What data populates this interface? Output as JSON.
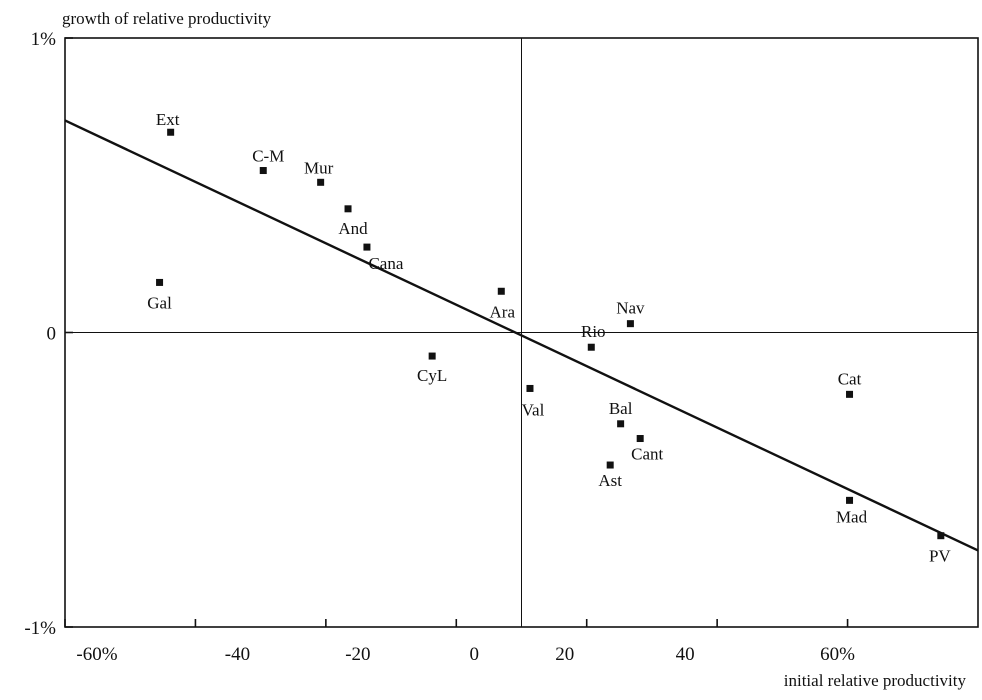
{
  "chart_data": {
    "type": "scatter",
    "title": "",
    "xlabel": "initial relative productivity",
    "ylabel": "growth of relative productivity",
    "xlim": [
      -60,
      80
    ],
    "ylim": [
      -1,
      1
    ],
    "grid": false,
    "zero_lines": {
      "x": 10,
      "y": 0
    },
    "x_ticks": [
      {
        "value": -60,
        "label": "-60%"
      },
      {
        "value": -40,
        "label": "-40"
      },
      {
        "value": -20,
        "label": "-20"
      },
      {
        "value": 0,
        "label": "0"
      },
      {
        "value": 20,
        "label": "20"
      },
      {
        "value": 40,
        "label": "40"
      },
      {
        "value": 60,
        "label": "60%"
      }
    ],
    "x_tick_marks": [
      -60,
      -40,
      -20,
      0,
      20,
      40,
      60
    ],
    "y_ticks": [
      {
        "value": 1,
        "label": "1%"
      },
      {
        "value": 0,
        "label": "0"
      },
      {
        "value": -1,
        "label": "-1%"
      }
    ],
    "points": [
      {
        "label": "Ext",
        "x": -43.8,
        "y": 0.68
      },
      {
        "label": "C-M",
        "x": -29.6,
        "y": 0.55
      },
      {
        "label": "Mur",
        "x": -20.8,
        "y": 0.51
      },
      {
        "label": "And",
        "x": -16.6,
        "y": 0.42
      },
      {
        "label": "Cana",
        "x": -13.7,
        "y": 0.29
      },
      {
        "label": "Gal",
        "x": -45.5,
        "y": 0.17
      },
      {
        "label": "Ara",
        "x": 6.9,
        "y": 0.14
      },
      {
        "label": "Nav",
        "x": 26.7,
        "y": 0.03
      },
      {
        "label": "Rio",
        "x": 20.7,
        "y": -0.05
      },
      {
        "label": "CyL",
        "x": -3.7,
        "y": -0.08
      },
      {
        "label": "Val",
        "x": 11.3,
        "y": -0.19
      },
      {
        "label": "Cat",
        "x": 60.3,
        "y": -0.21
      },
      {
        "label": "Bal",
        "x": 25.2,
        "y": -0.31
      },
      {
        "label": "Cant",
        "x": 28.2,
        "y": -0.36
      },
      {
        "label": "Ast",
        "x": 23.6,
        "y": -0.45
      },
      {
        "label": "Mad",
        "x": 60.3,
        "y": -0.57
      },
      {
        "label": "PV",
        "x": 74.3,
        "y": -0.69
      }
    ],
    "trend_line": {
      "x": [
        -60,
        80
      ],
      "y": [
        0.72,
        -0.74
      ]
    }
  }
}
